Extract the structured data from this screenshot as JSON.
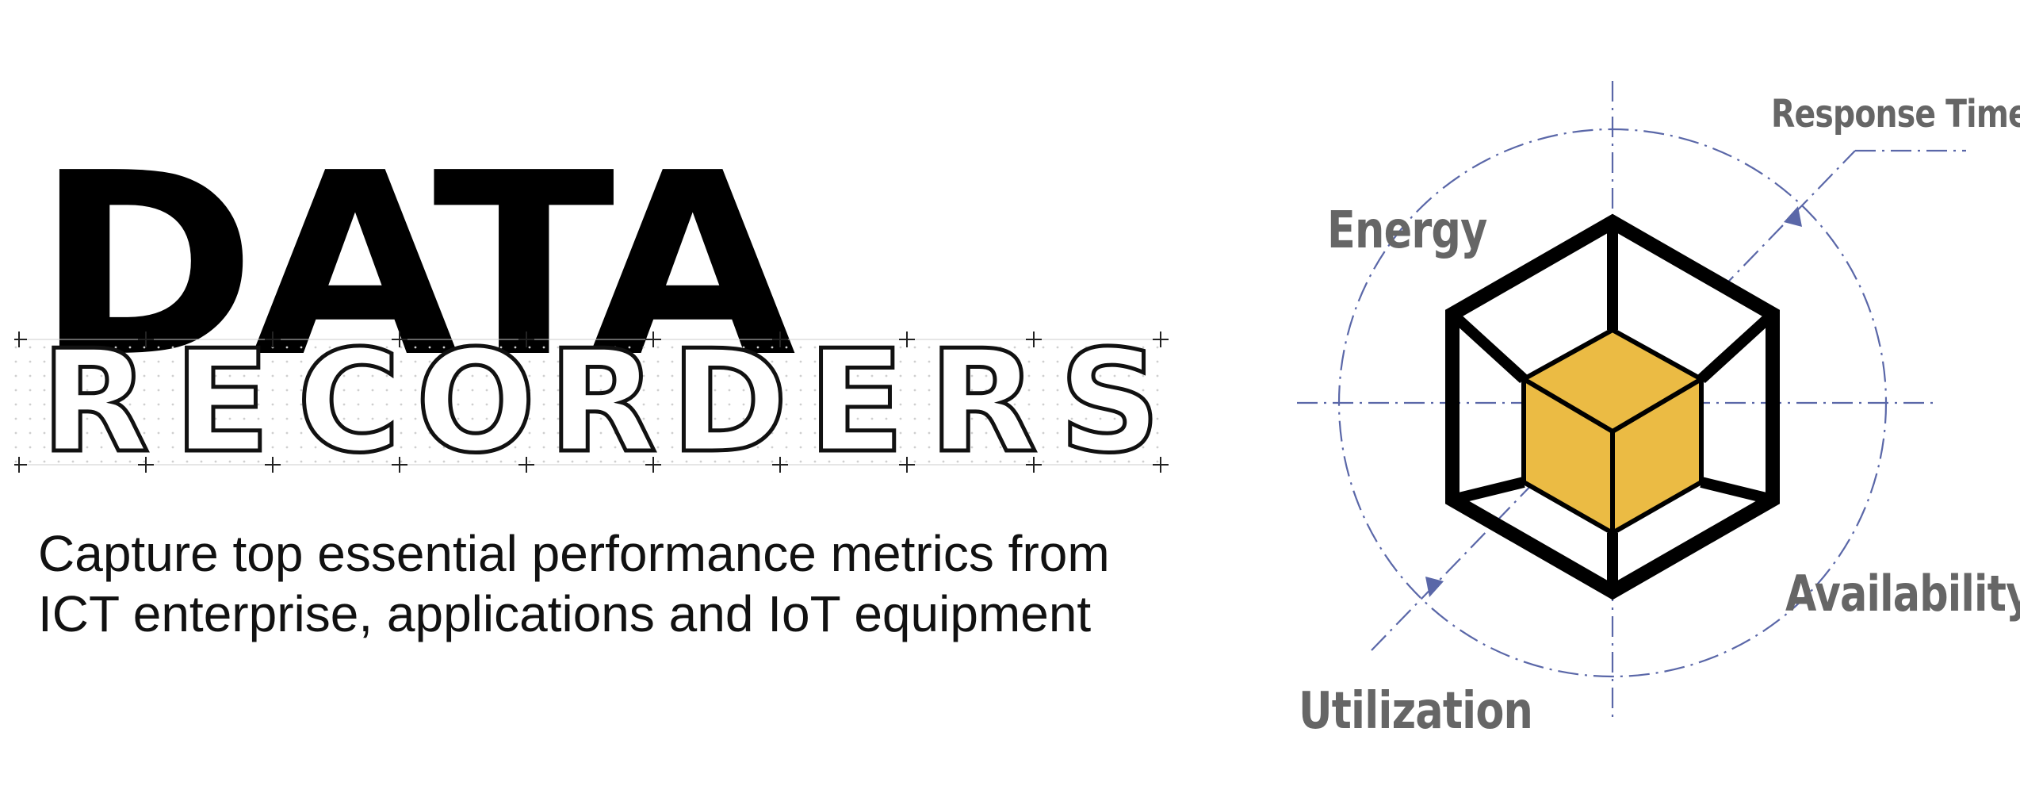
{
  "heading": {
    "title": "DATA",
    "subtitle_letters": [
      "R",
      "E",
      "C",
      "O",
      "R",
      "D",
      "E",
      "R",
      "S"
    ]
  },
  "tagline": {
    "line1": "Capture top essential performance metrics from",
    "line2": "ICT enterprise, applications and IoT equipment"
  },
  "diagram": {
    "labels": {
      "response_time": "Response Time",
      "energy": "Energy",
      "availability": "Availability",
      "utilization": "Utilization"
    },
    "colors": {
      "axis": "#5a67a8",
      "label": "#666666",
      "cube_fill": "#ebbb44",
      "frame": "#000000"
    }
  }
}
